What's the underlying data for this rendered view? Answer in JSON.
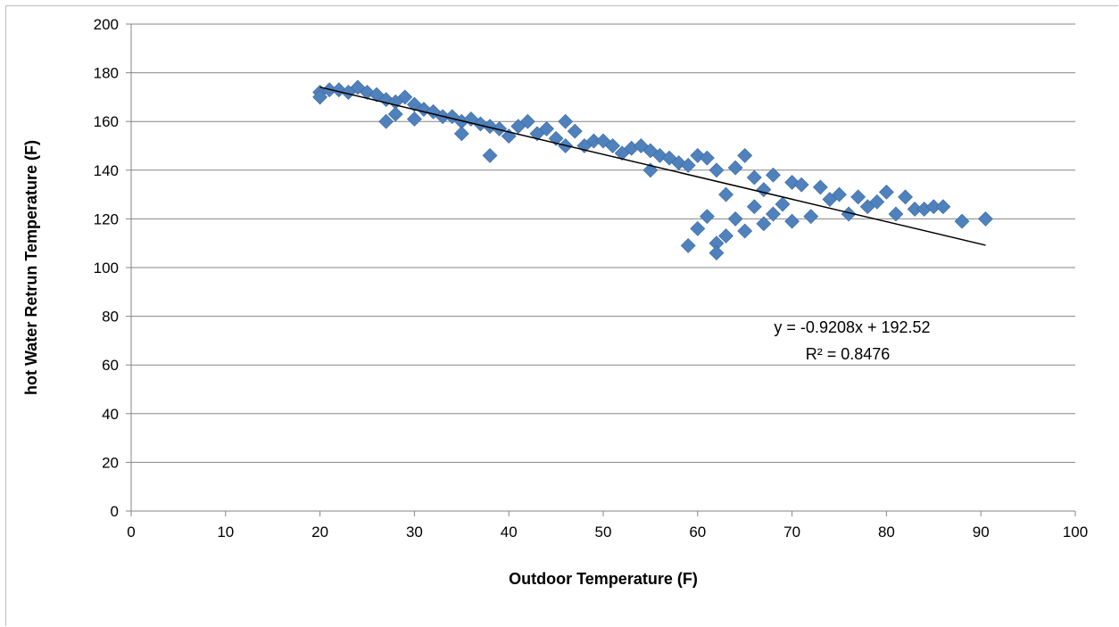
{
  "chart_data": {
    "type": "scatter",
    "xlabel": "Outdoor Temperature (F)",
    "ylabel": "hot Water Retrun Temperature (F)",
    "xlim": [
      0,
      100
    ],
    "ylim": [
      0,
      200
    ],
    "x_ticks": [
      0,
      10,
      20,
      30,
      40,
      50,
      60,
      70,
      80,
      90,
      100
    ],
    "y_ticks": [
      0,
      20,
      40,
      60,
      80,
      100,
      120,
      140,
      160,
      180,
      200
    ],
    "x_tick_labels": [
      "0",
      "10",
      "20",
      "30",
      "40",
      "50",
      "60",
      "70",
      "80",
      "90",
      "100"
    ],
    "y_tick_labels": [
      "0",
      "20",
      "40",
      "60",
      "80",
      "100",
      "120",
      "140",
      "160",
      "180",
      "200"
    ],
    "grid": {
      "horizontal": true,
      "vertical": false
    },
    "legend": "none",
    "marker": "diamond",
    "colors": {
      "marker": "#4f81bd",
      "marker_edge": "#3c6a9e",
      "trendline": "#000000",
      "grid": "#868686",
      "axis": "#868686"
    },
    "series": [
      {
        "x": [
          20,
          20,
          21,
          22,
          23,
          24,
          25,
          26,
          27,
          27,
          28,
          28,
          29,
          30,
          30,
          31,
          32,
          33,
          34,
          35,
          35,
          36,
          37,
          38,
          38,
          39,
          40,
          41,
          42,
          43,
          44,
          45,
          46,
          46,
          47,
          48,
          49,
          50,
          51,
          52,
          53,
          54,
          55,
          55,
          56,
          57,
          58,
          59,
          59,
          60,
          60,
          61,
          61,
          62,
          62,
          62,
          63,
          63,
          64,
          64,
          65,
          65,
          66,
          66,
          67,
          67,
          68,
          68,
          69,
          70,
          70,
          71,
          72,
          73,
          74,
          75,
          76,
          77,
          78,
          79,
          80,
          81,
          82,
          83,
          84,
          85,
          86,
          88,
          90.5
        ],
        "y": [
          172,
          170,
          173,
          173,
          172,
          174,
          172,
          171,
          169,
          160,
          168,
          163,
          170,
          167,
          161,
          165,
          164,
          162,
          162,
          160,
          155,
          161,
          159,
          158,
          146,
          157,
          154,
          158,
          160,
          155,
          157,
          153,
          160,
          150,
          156,
          150,
          152,
          152,
          150,
          147,
          149,
          150,
          148,
          140,
          146,
          145,
          143,
          142,
          109,
          146,
          116,
          145,
          121,
          110,
          106,
          140,
          113,
          130,
          141,
          120,
          146,
          115,
          137,
          125,
          132,
          118,
          138,
          122,
          126,
          135,
          119,
          134,
          121,
          133,
          128,
          130,
          122,
          129,
          125,
          127,
          131,
          122,
          129,
          124,
          124,
          125,
          125,
          119,
          120
        ]
      }
    ],
    "trendline": {
      "equation": "y = -0.9208x + 192.52",
      "r_squared": "R² = 0.8476",
      "slope": -0.9208,
      "intercept": 192.52,
      "x_range": [
        20,
        90.5
      ]
    }
  }
}
